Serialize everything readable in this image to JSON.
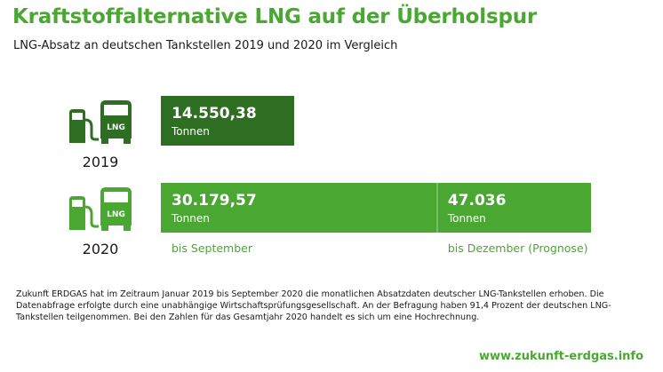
{
  "title": "Kraftstoffalternative LNG auf der Überholspur",
  "subtitle": "LNG-Absatz an deutschen Tankstellen 2019 und 2020 im Vergleich",
  "icon": {
    "name": "lng-truck-fuel-icon",
    "text": "LNG"
  },
  "chart_data": {
    "type": "bar",
    "orientation": "horizontal",
    "unit": "Tonnen",
    "title": "",
    "rows": [
      {
        "year": "2019",
        "color": "#2e6e22",
        "segments": [
          {
            "value": 14550.38,
            "label": "14.550,38",
            "unit": "Tonnen",
            "color": "#2e6e22",
            "period": ""
          }
        ]
      },
      {
        "year": "2020",
        "color": "#4aa832",
        "segments": [
          {
            "value": 30179.57,
            "label": "30.179,57",
            "unit": "Tonnen",
            "color": "#4aa832",
            "period": "bis September"
          },
          {
            "value": 47036,
            "label": "47.036",
            "unit": "Tonnen",
            "color": "#4aa832",
            "period": "bis Dezember (Prognose)"
          }
        ]
      }
    ]
  },
  "note": "Zukunft ERDGAS hat im Zeitraum Januar 2019 bis September 2020 die monatlichen Absatzdaten deutscher LNG-Tankstellen erhoben. Die Datenabfrage erfolgte durch eine unabhängige Wirtschaftsprüfungsgesellschaft. An der Befragung haben 91,4 Prozent der deutschen LNG-Tankstellen teilgenommen. Bei den Zahlen für das Gesamtjahr 2020 handelt es sich um eine Hochrechnung.",
  "website": "www.zukunft-erdgas.info",
  "colors": {
    "accent": "#4aa832",
    "dark": "#2e6e22"
  }
}
